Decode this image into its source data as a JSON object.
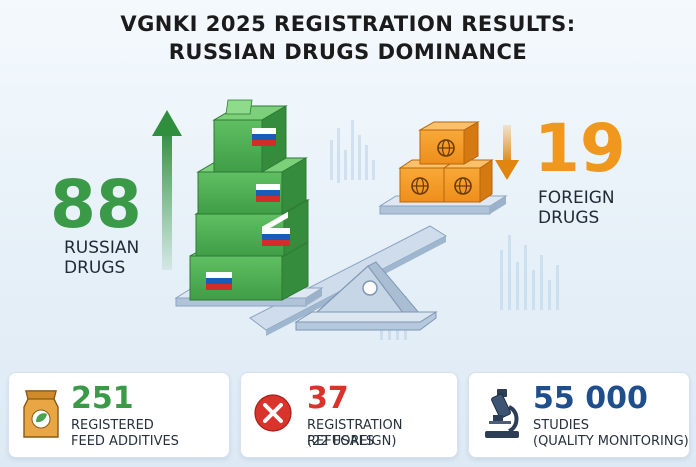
{
  "title": {
    "line1": "VGNKI 2025 REGISTRATION RESULTS:",
    "line2": "RUSSIAN DRUGS DOMINANCE"
  },
  "russian": {
    "value": "88",
    "label_line1": "RUSSIAN",
    "label_line2": "DRUGS",
    "color": "#3a9a48"
  },
  "foreign": {
    "value": "19",
    "label_line1": "FOREIGN",
    "label_line2": "DRUGS",
    "color": "#f0971e"
  },
  "cards": [
    {
      "value": "251",
      "line1": "REGISTERED",
      "line2": "FEED ADDITIVES",
      "color": "#3a9a48",
      "icon": "feed-bag-icon"
    },
    {
      "value": "37",
      "line1": "REGISTRATION REFUSALS",
      "line2": "(22 FOREIGN)",
      "color": "#d9342b",
      "icon": "refusal-x-icon"
    },
    {
      "value": "55 000",
      "line1": "STUDIES",
      "line2": "(QUALITY MONITORING)",
      "color": "#1f4e8c",
      "icon": "microscope-icon"
    }
  ]
}
